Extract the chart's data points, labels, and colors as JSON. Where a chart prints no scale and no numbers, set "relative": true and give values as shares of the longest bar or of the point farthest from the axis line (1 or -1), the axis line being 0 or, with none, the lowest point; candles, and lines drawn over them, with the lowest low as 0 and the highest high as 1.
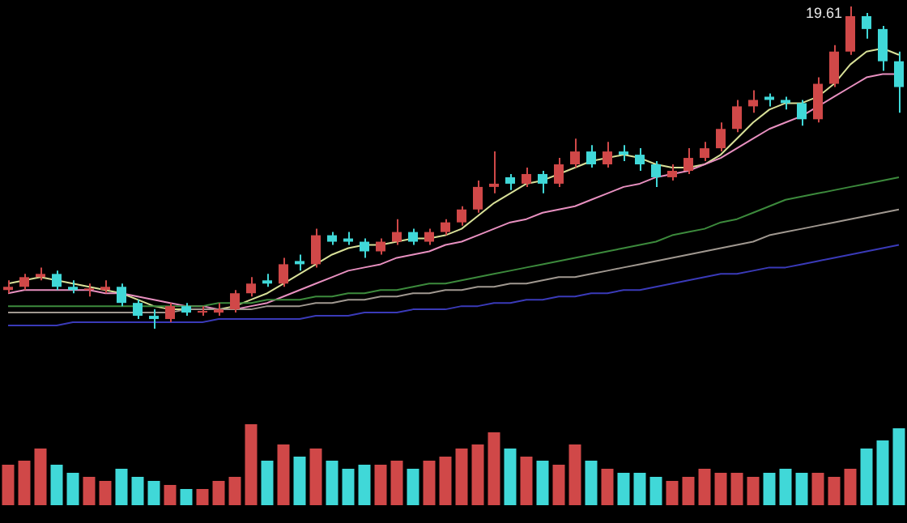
{
  "chart_data": [
    {
      "type": "candlestick",
      "relative": true,
      "marker": "none",
      "annotations": [
        "19.61"
      ],
      "categories": [
        null,
        null,
        null,
        null,
        null,
        null,
        null,
        null,
        null,
        null,
        null,
        null,
        null,
        null,
        null,
        null,
        null,
        null,
        null,
        null,
        null,
        null,
        null,
        null,
        null,
        null,
        null,
        null,
        null,
        null,
        null,
        null,
        null,
        null,
        null,
        null,
        null,
        null,
        null,
        null,
        null,
        null,
        null,
        null,
        null,
        null,
        null,
        null,
        null,
        null,
        null,
        null,
        null,
        null,
        null,
        null
      ],
      "ohlc": [
        [
          0.12,
          0.15,
          0.11,
          0.13
        ],
        [
          0.13,
          0.17,
          0.12,
          0.16
        ],
        [
          0.16,
          0.19,
          0.15,
          0.17
        ],
        [
          0.17,
          0.18,
          0.12,
          0.13
        ],
        [
          0.13,
          0.15,
          0.11,
          0.12
        ],
        [
          0.12,
          0.14,
          0.1,
          0.12
        ],
        [
          0.12,
          0.15,
          0.11,
          0.13
        ],
        [
          0.13,
          0.14,
          0.07,
          0.08
        ],
        [
          0.08,
          0.09,
          0.03,
          0.04
        ],
        [
          0.04,
          0.06,
          0.0,
          0.03
        ],
        [
          0.03,
          0.08,
          0.02,
          0.07
        ],
        [
          0.07,
          0.08,
          0.04,
          0.05
        ],
        [
          0.05,
          0.07,
          0.04,
          0.05
        ],
        [
          0.05,
          0.08,
          0.04,
          0.06
        ],
        [
          0.06,
          0.12,
          0.05,
          0.11
        ],
        [
          0.11,
          0.16,
          0.1,
          0.14
        ],
        [
          0.15,
          0.17,
          0.13,
          0.14
        ],
        [
          0.14,
          0.22,
          0.13,
          0.2
        ],
        [
          0.21,
          0.23,
          0.18,
          0.2
        ],
        [
          0.2,
          0.31,
          0.19,
          0.29
        ],
        [
          0.29,
          0.3,
          0.26,
          0.27
        ],
        [
          0.28,
          0.3,
          0.26,
          0.27
        ],
        [
          0.27,
          0.28,
          0.22,
          0.24
        ],
        [
          0.24,
          0.28,
          0.23,
          0.27
        ],
        [
          0.27,
          0.34,
          0.26,
          0.3
        ],
        [
          0.3,
          0.31,
          0.26,
          0.27
        ],
        [
          0.27,
          0.31,
          0.26,
          0.3
        ],
        [
          0.3,
          0.34,
          0.29,
          0.33
        ],
        [
          0.33,
          0.38,
          0.32,
          0.37
        ],
        [
          0.37,
          0.46,
          0.36,
          0.44
        ],
        [
          0.44,
          0.55,
          0.42,
          0.45
        ],
        [
          0.47,
          0.48,
          0.43,
          0.45
        ],
        [
          0.45,
          0.5,
          0.44,
          0.48
        ],
        [
          0.48,
          0.49,
          0.42,
          0.45
        ],
        [
          0.45,
          0.53,
          0.44,
          0.51
        ],
        [
          0.51,
          0.59,
          0.5,
          0.55
        ],
        [
          0.55,
          0.57,
          0.5,
          0.51
        ],
        [
          0.51,
          0.58,
          0.5,
          0.55
        ],
        [
          0.55,
          0.57,
          0.52,
          0.54
        ],
        [
          0.54,
          0.56,
          0.49,
          0.51
        ],
        [
          0.51,
          0.52,
          0.44,
          0.47
        ],
        [
          0.47,
          0.51,
          0.46,
          0.49
        ],
        [
          0.49,
          0.56,
          0.48,
          0.53
        ],
        [
          0.53,
          0.58,
          0.52,
          0.56
        ],
        [
          0.56,
          0.64,
          0.55,
          0.62
        ],
        [
          0.62,
          0.71,
          0.61,
          0.69
        ],
        [
          0.69,
          0.74,
          0.67,
          0.71
        ],
        [
          0.72,
          0.73,
          0.69,
          0.71
        ],
        [
          0.71,
          0.72,
          0.68,
          0.7
        ],
        [
          0.7,
          0.71,
          0.63,
          0.65
        ],
        [
          0.65,
          0.78,
          0.64,
          0.76
        ],
        [
          0.76,
          0.88,
          0.75,
          0.86
        ],
        [
          0.86,
          1.0,
          0.85,
          0.97
        ],
        [
          0.97,
          0.98,
          0.9,
          0.93
        ],
        [
          0.93,
          0.94,
          0.8,
          0.83
        ],
        [
          0.83,
          0.86,
          0.67,
          0.75
        ]
      ],
      "colors": [
        "#d04848",
        "#d04848",
        "#d04848",
        "#40d8d8",
        "#40d8d8",
        "#d04848",
        "#d04848",
        "#40d8d8",
        "#40d8d8",
        "#40d8d8",
        "#d04848",
        "#40d8d8",
        "#d04848",
        "#d04848",
        "#d04848",
        "#d04848",
        "#40d8d8",
        "#d04848",
        "#40d8d8",
        "#d04848",
        "#40d8d8",
        "#40d8d8",
        "#40d8d8",
        "#d04848",
        "#d04848",
        "#40d8d8",
        "#d04848",
        "#d04848",
        "#d04848",
        "#d04848",
        "#d04848",
        "#40d8d8",
        "#d04848",
        "#40d8d8",
        "#d04848",
        "#d04848",
        "#40d8d8",
        "#d04848",
        "#40d8d8",
        "#40d8d8",
        "#40d8d8",
        "#d04848",
        "#d04848",
        "#d04848",
        "#d04848",
        "#d04848",
        "#d04848",
        "#40d8d8",
        "#40d8d8",
        "#40d8d8",
        "#d04848",
        "#d04848",
        "#d04848",
        "#40d8d8",
        "#40d8d8",
        "#40d8d8"
      ],
      "series": [
        {
          "type": "line",
          "color": "#3a3ab8",
          "values": [
            0.01,
            0.01,
            0.01,
            0.01,
            0.02,
            0.02,
            0.02,
            0.02,
            0.02,
            0.02,
            0.02,
            0.02,
            0.02,
            0.03,
            0.03,
            0.03,
            0.03,
            0.03,
            0.03,
            0.04,
            0.04,
            0.04,
            0.05,
            0.05,
            0.05,
            0.06,
            0.06,
            0.06,
            0.07,
            0.07,
            0.08,
            0.08,
            0.09,
            0.09,
            0.1,
            0.1,
            0.11,
            0.11,
            0.12,
            0.12,
            0.13,
            0.14,
            0.15,
            0.16,
            0.17,
            0.17,
            0.18,
            0.19,
            0.19,
            0.2,
            0.21,
            0.22,
            0.23,
            0.24,
            0.25,
            0.26
          ]
        },
        {
          "type": "line",
          "color": "#a09890",
          "values": [
            0.05,
            0.05,
            0.05,
            0.05,
            0.05,
            0.05,
            0.05,
            0.05,
            0.05,
            0.05,
            0.05,
            0.06,
            0.06,
            0.06,
            0.06,
            0.06,
            0.07,
            0.07,
            0.07,
            0.08,
            0.08,
            0.09,
            0.09,
            0.1,
            0.1,
            0.11,
            0.11,
            0.12,
            0.12,
            0.13,
            0.13,
            0.14,
            0.14,
            0.15,
            0.16,
            0.16,
            0.17,
            0.18,
            0.19,
            0.2,
            0.21,
            0.22,
            0.23,
            0.24,
            0.25,
            0.26,
            0.27,
            0.29,
            0.3,
            0.31,
            0.32,
            0.33,
            0.34,
            0.35,
            0.36,
            0.37
          ]
        },
        {
          "type": "line",
          "color": "#3c8a3c",
          "values": [
            0.07,
            0.07,
            0.07,
            0.07,
            0.07,
            0.07,
            0.07,
            0.07,
            0.07,
            0.07,
            0.07,
            0.07,
            0.07,
            0.08,
            0.08,
            0.08,
            0.09,
            0.09,
            0.09,
            0.1,
            0.1,
            0.11,
            0.11,
            0.12,
            0.12,
            0.13,
            0.14,
            0.14,
            0.15,
            0.16,
            0.17,
            0.18,
            0.19,
            0.2,
            0.21,
            0.22,
            0.23,
            0.24,
            0.25,
            0.26,
            0.27,
            0.29,
            0.3,
            0.31,
            0.33,
            0.34,
            0.36,
            0.38,
            0.4,
            0.41,
            0.42,
            0.43,
            0.44,
            0.45,
            0.46,
            0.47
          ]
        },
        {
          "type": "line",
          "color": "#e890c0",
          "values": [
            0.11,
            0.12,
            0.12,
            0.12,
            0.12,
            0.12,
            0.11,
            0.11,
            0.1,
            0.09,
            0.08,
            0.07,
            0.07,
            0.06,
            0.06,
            0.07,
            0.08,
            0.1,
            0.12,
            0.14,
            0.16,
            0.18,
            0.19,
            0.2,
            0.22,
            0.23,
            0.24,
            0.26,
            0.27,
            0.29,
            0.31,
            0.33,
            0.34,
            0.36,
            0.37,
            0.38,
            0.4,
            0.42,
            0.44,
            0.45,
            0.47,
            0.48,
            0.49,
            0.51,
            0.53,
            0.56,
            0.59,
            0.62,
            0.64,
            0.66,
            0.69,
            0.72,
            0.75,
            0.78,
            0.79,
            0.79
          ]
        },
        {
          "type": "line",
          "color": "#d8e098",
          "values": [
            0.14,
            0.15,
            0.16,
            0.15,
            0.14,
            0.13,
            0.12,
            0.11,
            0.09,
            0.07,
            0.06,
            0.06,
            0.06,
            0.06,
            0.07,
            0.09,
            0.11,
            0.14,
            0.17,
            0.2,
            0.23,
            0.25,
            0.26,
            0.26,
            0.27,
            0.28,
            0.28,
            0.29,
            0.31,
            0.35,
            0.39,
            0.42,
            0.45,
            0.46,
            0.48,
            0.5,
            0.52,
            0.53,
            0.54,
            0.53,
            0.51,
            0.5,
            0.5,
            0.51,
            0.54,
            0.59,
            0.64,
            0.68,
            0.7,
            0.7,
            0.72,
            0.76,
            0.82,
            0.86,
            0.87,
            0.85
          ]
        }
      ]
    },
    {
      "type": "bar",
      "relative": true,
      "categories": [
        null,
        null,
        null,
        null,
        null,
        null,
        null,
        null,
        null,
        null,
        null,
        null,
        null,
        null,
        null,
        null,
        null,
        null,
        null,
        null,
        null,
        null,
        null,
        null,
        null,
        null,
        null,
        null,
        null,
        null,
        null,
        null,
        null,
        null,
        null,
        null,
        null,
        null,
        null,
        null,
        null,
        null,
        null,
        null,
        null,
        null,
        null,
        null,
        null,
        null,
        null,
        null,
        null,
        null,
        null,
        null
      ],
      "values": [
        0.5,
        0.55,
        0.7,
        0.5,
        0.4,
        0.35,
        0.3,
        0.45,
        0.35,
        0.3,
        0.25,
        0.2,
        0.2,
        0.3,
        0.35,
        1.0,
        0.55,
        0.75,
        0.6,
        0.7,
        0.55,
        0.45,
        0.5,
        0.5,
        0.55,
        0.45,
        0.55,
        0.6,
        0.7,
        0.75,
        0.9,
        0.7,
        0.6,
        0.55,
        0.5,
        0.75,
        0.55,
        0.45,
        0.4,
        0.4,
        0.35,
        0.3,
        0.35,
        0.45,
        0.4,
        0.4,
        0.35,
        0.4,
        0.45,
        0.4,
        0.4,
        0.35,
        0.45,
        0.7,
        0.8,
        0.95
      ],
      "colors": [
        "#d04848",
        "#d04848",
        "#d04848",
        "#40d8d8",
        "#40d8d8",
        "#d04848",
        "#d04848",
        "#40d8d8",
        "#40d8d8",
        "#40d8d8",
        "#d04848",
        "#40d8d8",
        "#d04848",
        "#d04848",
        "#d04848",
        "#d04848",
        "#40d8d8",
        "#d04848",
        "#40d8d8",
        "#d04848",
        "#40d8d8",
        "#40d8d8",
        "#40d8d8",
        "#d04848",
        "#d04848",
        "#40d8d8",
        "#d04848",
        "#d04848",
        "#d04848",
        "#d04848",
        "#d04848",
        "#40d8d8",
        "#d04848",
        "#40d8d8",
        "#d04848",
        "#d04848",
        "#40d8d8",
        "#d04848",
        "#40d8d8",
        "#40d8d8",
        "#40d8d8",
        "#d04848",
        "#d04848",
        "#d04848",
        "#d04848",
        "#d04848",
        "#d04848",
        "#40d8d8",
        "#40d8d8",
        "#40d8d8",
        "#d04848",
        "#d04848",
        "#d04848",
        "#40d8d8",
        "#40d8d8",
        "#40d8d8"
      ]
    }
  ]
}
